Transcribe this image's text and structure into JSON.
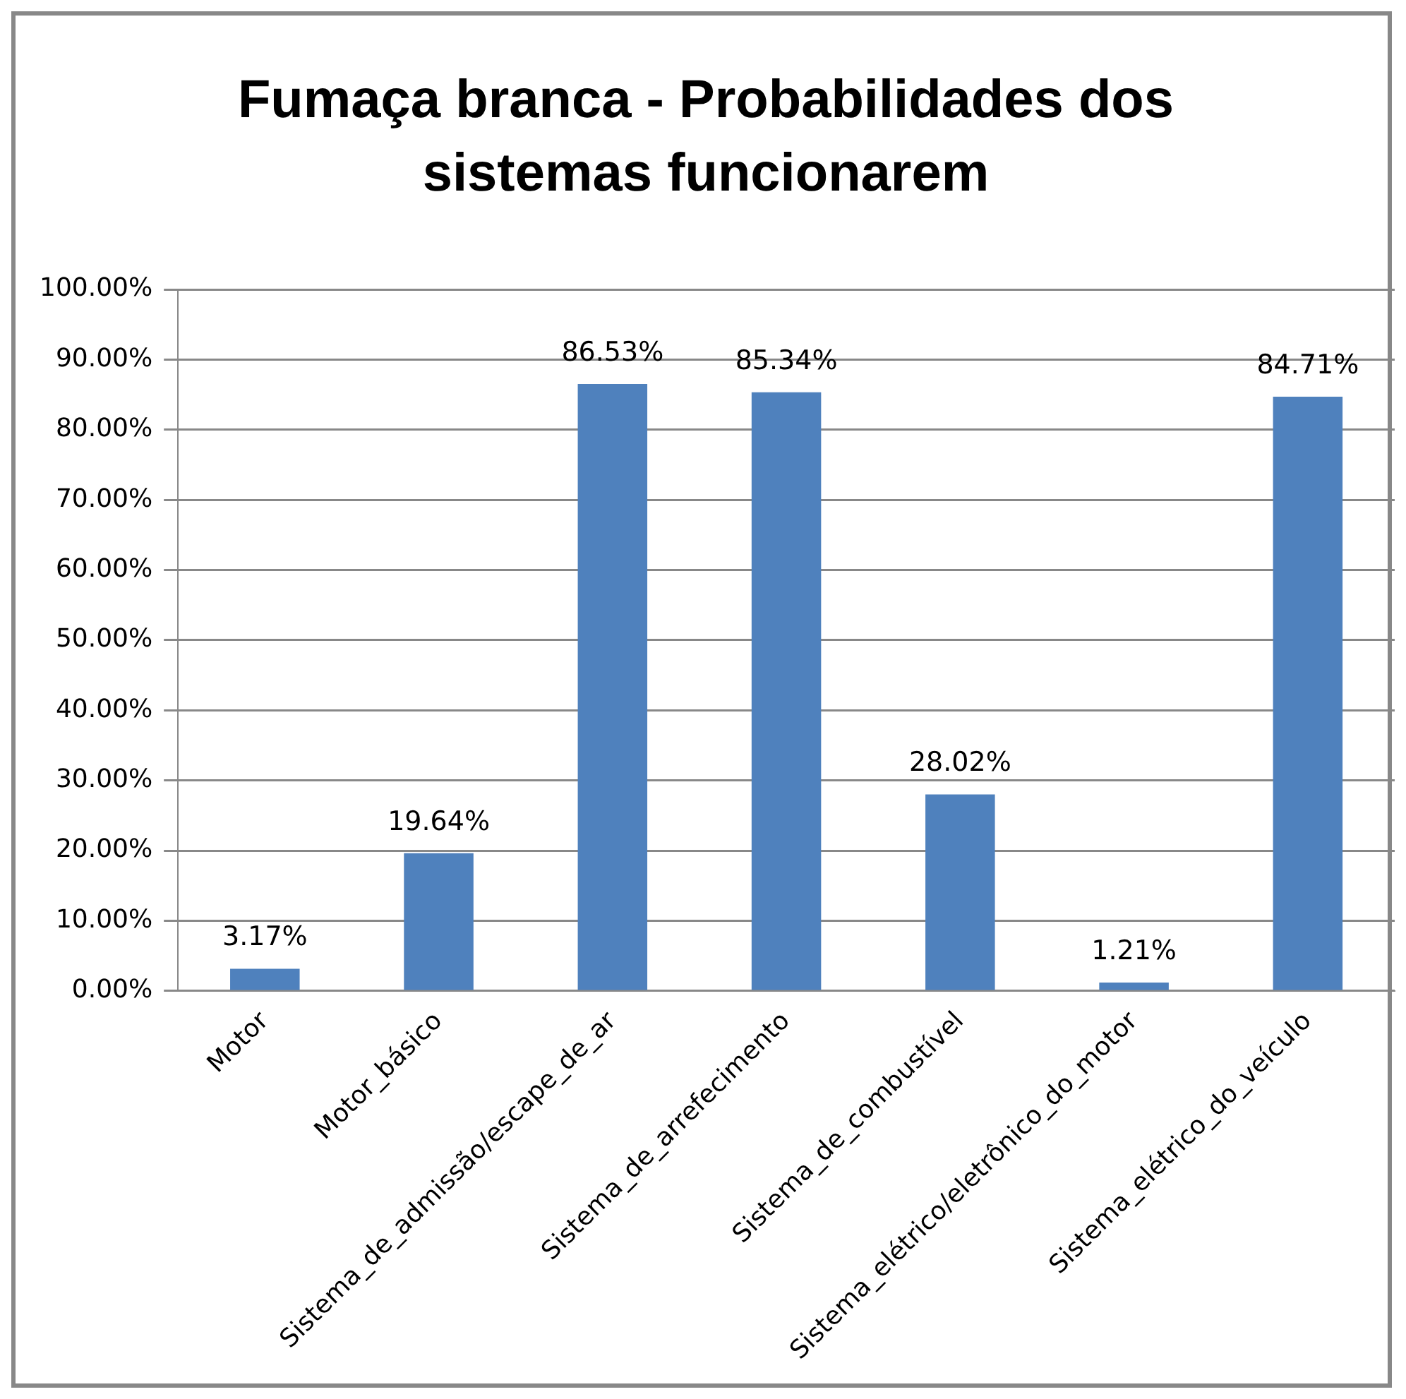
{
  "chart_data": {
    "type": "bar",
    "title": "Fumaça branca -  Probabilidades dos sistemas funcionarem",
    "categories": [
      "Motor",
      "Motor_básico",
      "Sistema_de_admissão/escape_de_ar",
      "Sistema_de_arrefecimento",
      "Sistema_de_combustível",
      "Sistema_elétrico/eletrônico_do_motor",
      "Sistema_elétrico_do_veículo"
    ],
    "values": [
      3.17,
      19.64,
      86.53,
      85.34,
      28.02,
      1.21,
      84.71
    ],
    "value_labels": [
      "3.17%",
      "19.64%",
      "86.53%",
      "85.34%",
      "28.02%",
      "1.21%",
      "84.71%"
    ],
    "color": "#4f81bd",
    "ylim": [
      0,
      100
    ],
    "yticks": [
      {
        "value": 0,
        "label": "0.00%"
      },
      {
        "value": 10,
        "label": "10.00%"
      },
      {
        "value": 20,
        "label": "20.00%"
      },
      {
        "value": 30,
        "label": "30.00%"
      },
      {
        "value": 40,
        "label": "40.00%"
      },
      {
        "value": 50,
        "label": "50.00%"
      },
      {
        "value": 60,
        "label": "60.00%"
      },
      {
        "value": 70,
        "label": "70.00%"
      },
      {
        "value": 80,
        "label": "80.00%"
      },
      {
        "value": 90,
        "label": "90.00%"
      },
      {
        "value": 100,
        "label": "100.00%"
      }
    ],
    "grid": "y",
    "legend": false
  }
}
